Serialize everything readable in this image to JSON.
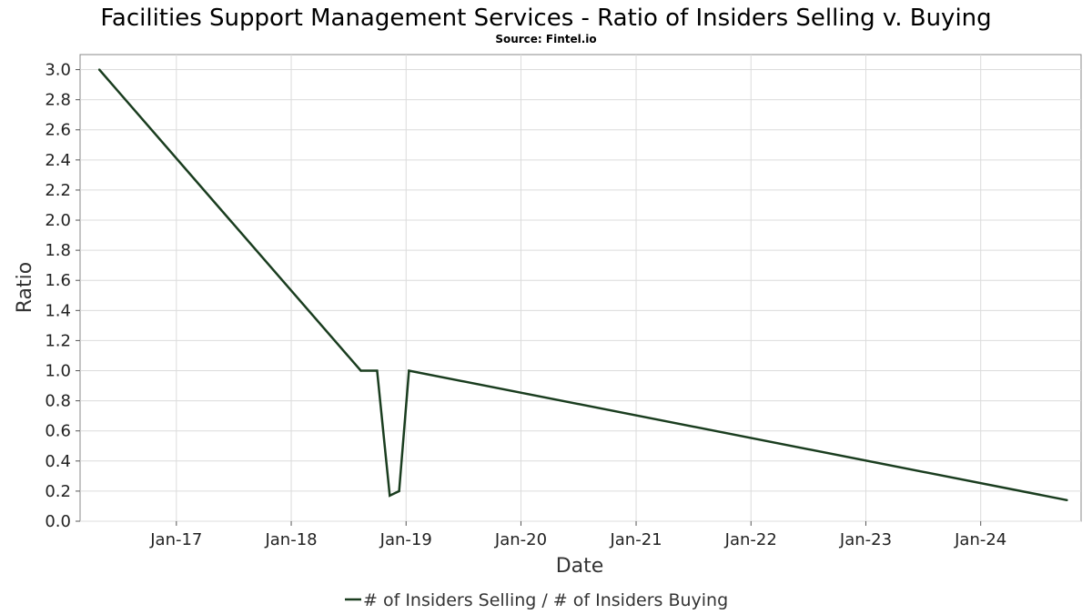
{
  "chart_data": {
    "type": "line",
    "title": "Facilities Support Management Services - Ratio of Insiders Selling v. Buying",
    "subtitle": "Source: Fintel.io",
    "xlabel": "Date",
    "ylabel": "Ratio",
    "xlim": [
      "2016-03-01",
      "2024-11-15"
    ],
    "ylim": [
      0.0,
      3.1
    ],
    "x_ticks": [
      {
        "date": "2017-01-01",
        "label": "Jan-17"
      },
      {
        "date": "2018-01-01",
        "label": "Jan-18"
      },
      {
        "date": "2019-01-01",
        "label": "Jan-19"
      },
      {
        "date": "2020-01-01",
        "label": "Jan-20"
      },
      {
        "date": "2021-01-01",
        "label": "Jan-21"
      },
      {
        "date": "2022-01-01",
        "label": "Jan-22"
      },
      {
        "date": "2023-01-01",
        "label": "Jan-23"
      },
      {
        "date": "2024-01-01",
        "label": "Jan-24"
      }
    ],
    "y_ticks": [
      0.0,
      0.2,
      0.4,
      0.6,
      0.8,
      1.0,
      1.2,
      1.4,
      1.6,
      1.8,
      2.0,
      2.2,
      2.4,
      2.6,
      2.8,
      3.0
    ],
    "grid": true,
    "legend_position": "bottom-center",
    "series": [
      {
        "name": "# of Insiders Selling / # of Insiders Buying",
        "color": "#1a3d1f",
        "points": [
          {
            "x": "2016-05-01",
            "y": 3.0
          },
          {
            "x": "2018-08-10",
            "y": 1.0
          },
          {
            "x": "2018-10-01",
            "y": 1.0
          },
          {
            "x": "2018-11-10",
            "y": 0.17
          },
          {
            "x": "2018-12-10",
            "y": 0.2
          },
          {
            "x": "2019-01-10",
            "y": 1.0
          },
          {
            "x": "2024-10-01",
            "y": 0.14
          }
        ]
      }
    ]
  }
}
